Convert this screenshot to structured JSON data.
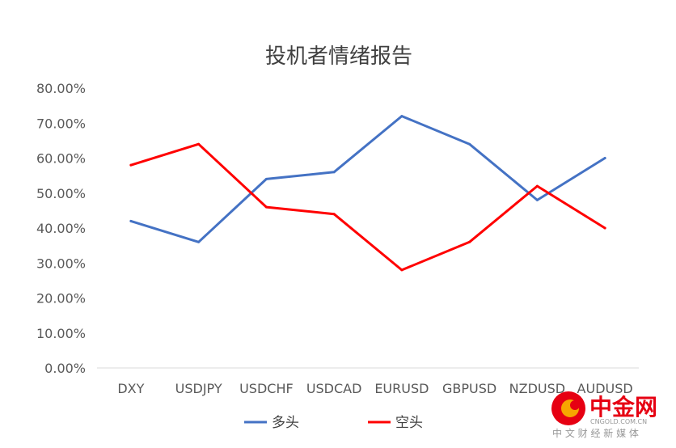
{
  "chart_data": {
    "type": "line",
    "title": "投机者情绪报告",
    "categories": [
      "DXY",
      "USDJPY",
      "USDCHF",
      "USDCAD",
      "EURUSD",
      "GBPUSD",
      "NZDUSD",
      "AUDUSD"
    ],
    "series": [
      {
        "name": "多头",
        "color": "#4472C4",
        "values": [
          42,
          36,
          54,
          56,
          72,
          64,
          48,
          60
        ]
      },
      {
        "name": "空头",
        "color": "#FF0000",
        "values": [
          58,
          64,
          46,
          44,
          28,
          36,
          52,
          40
        ]
      }
    ],
    "ylim": [
      0,
      80
    ],
    "yticks": [
      "0.00%",
      "10.00%",
      "20.00%",
      "30.00%",
      "40.00%",
      "50.00%",
      "60.00%",
      "70.00%",
      "80.00%"
    ],
    "grid": false,
    "legend_position": "bottom"
  },
  "watermark": {
    "brand": "中金网",
    "domain": "CNGOLD.COM.CN",
    "tagline": "中 文 财 经 新 媒 体",
    "colors": {
      "red": "#E60012",
      "orange": "#F7A600"
    }
  }
}
